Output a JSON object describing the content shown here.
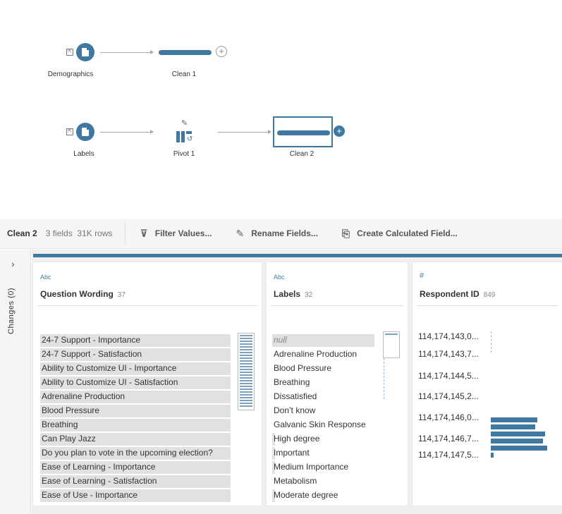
{
  "flow": {
    "nodes": {
      "demographics": "Demographics",
      "clean1": "Clean 1",
      "labels": "Labels",
      "pivot1": "Pivot 1",
      "clean2": "Clean 2"
    }
  },
  "toolbar": {
    "step_name": "Clean 2",
    "meta": "3 fields  31K rows",
    "filter_label": "Filter Values...",
    "rename_label": "Rename Fields...",
    "calc_label": "Create Calculated Field..."
  },
  "sidebar": {
    "changes_label": "Changes (0)"
  },
  "profile": {
    "question": {
      "type": "Abc",
      "name": "Question Wording",
      "count": "37",
      "values": [
        {
          "label": "24-7 Support - Importance",
          "share": 1.0
        },
        {
          "label": "24-7 Support - Satisfaction",
          "share": 1.0
        },
        {
          "label": "Ability to Customize UI - Importance",
          "share": 1.0
        },
        {
          "label": "Ability to Customize UI - Satisfaction",
          "share": 1.0
        },
        {
          "label": "Adrenaline Production",
          "share": 1.0
        },
        {
          "label": "Blood Pressure",
          "share": 1.0
        },
        {
          "label": "Breathing",
          "share": 1.0
        },
        {
          "label": "Can Play Jazz",
          "share": 1.0
        },
        {
          "label": "Do you plan to vote in the upcoming election?",
          "share": 1.0
        },
        {
          "label": "Ease of Learning - Importance",
          "share": 1.0
        },
        {
          "label": "Ease of Learning - Satisfaction",
          "share": 1.0
        },
        {
          "label": "Ease of Use - Importance",
          "share": 1.0
        }
      ]
    },
    "labels": {
      "type": "Abc",
      "name": "Labels",
      "count": "32",
      "values": [
        {
          "label": "null",
          "share": 1.0,
          "null": true
        },
        {
          "label": "Adrenaline Production",
          "share": 0.0
        },
        {
          "label": "Blood Pressure",
          "share": 0.0
        },
        {
          "label": "Breathing",
          "share": 0.0
        },
        {
          "label": "Dissatisfied",
          "share": 0.0
        },
        {
          "label": "Don’t know",
          "share": 0.0
        },
        {
          "label": "Galvanic Skin Response",
          "share": 0.0
        },
        {
          "label": "High degree",
          "share": 0.03
        },
        {
          "label": "Important",
          "share": 0.03
        },
        {
          "label": "Medium Importance",
          "share": 0.03
        },
        {
          "label": "Metabolism",
          "share": 0.0
        },
        {
          "label": "Moderate degree",
          "share": 0.03
        }
      ]
    },
    "respondent": {
      "type": "#",
      "name": "Respondent ID",
      "count": "849",
      "bins": [
        "114,174,143,0...",
        "114,174,143,7...",
        "114,174,144,5...",
        "114,174,145,2...",
        "114,174,146,0...",
        "114,174,146,7...",
        "114,174,147,5..."
      ],
      "histogram": [
        0.83,
        0.79,
        0.96,
        0.92,
        1.0,
        0.05
      ]
    }
  }
}
